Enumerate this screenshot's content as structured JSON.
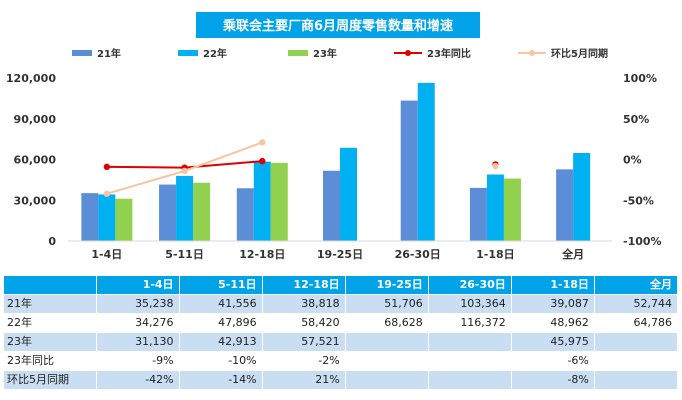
{
  "chart_data": {
    "type": "bar",
    "title": "乘联会主要厂商6月周度零售数量和增速",
    "categories": [
      "1-4日",
      "5-11日",
      "12-18日",
      "19-25日",
      "26-30日",
      "1-18日",
      "全月"
    ],
    "series": [
      {
        "name": "21年",
        "type": "bar",
        "axis": "left",
        "color": "#5b8ed6",
        "values": [
          35238,
          41556,
          38818,
          51706,
          103364,
          39087,
          52744
        ]
      },
      {
        "name": "22年",
        "type": "bar",
        "axis": "left",
        "color": "#00b0f0",
        "values": [
          34276,
          47896,
          58420,
          68628,
          116372,
          48962,
          64786
        ]
      },
      {
        "name": "23年",
        "type": "bar",
        "axis": "left",
        "color": "#92d050",
        "values": [
          31130,
          42913,
          57521,
          null,
          null,
          45975,
          null
        ]
      },
      {
        "name": "23年同比",
        "type": "line",
        "axis": "right",
        "color": "#e00000",
        "values": [
          -9,
          -10,
          -2,
          null,
          null,
          -6,
          null
        ]
      },
      {
        "name": "环比5月同期",
        "type": "line",
        "axis": "right",
        "color": "#f7c59f",
        "values": [
          -42,
          -14,
          21,
          null,
          null,
          -8,
          null
        ]
      }
    ],
    "ylim": [
      0,
      120000
    ],
    "yticks": [
      "0",
      "30,000",
      "60,000",
      "90,000",
      "120,000"
    ],
    "y2lim": [
      -100,
      100
    ],
    "y2ticks": [
      "-100%",
      "-50%",
      "0%",
      "50%",
      "100%"
    ],
    "legend_position": "top",
    "grid": false
  },
  "table": {
    "headers": [
      "1-4日",
      "5-11日",
      "12-18日",
      "19-25日",
      "26-30日",
      "1-18日",
      "全月"
    ],
    "rows": [
      {
        "label": "21年",
        "cells": [
          "35,238",
          "41,556",
          "38,818",
          "51,706",
          "103,364",
          "39,087",
          "52,744"
        ]
      },
      {
        "label": "22年",
        "cells": [
          "34,276",
          "47,896",
          "58,420",
          "68,628",
          "116,372",
          "48,962",
          "64,786"
        ]
      },
      {
        "label": "23年",
        "cells": [
          "31,130",
          "42,913",
          "57,521",
          "",
          "",
          "45,975",
          ""
        ]
      },
      {
        "label": "23年同比",
        "cells": [
          "-9%",
          "-10%",
          "-2%",
          "",
          "",
          "-6%",
          ""
        ]
      },
      {
        "label": "环比5月同期",
        "cells": [
          "-42%",
          "-14%",
          "21%",
          "",
          "",
          "-8%",
          ""
        ]
      }
    ]
  },
  "colors": {
    "title_bg": "#00a2e8",
    "header_bg": "#00a2e8",
    "band_row": "#c9ddf3"
  }
}
